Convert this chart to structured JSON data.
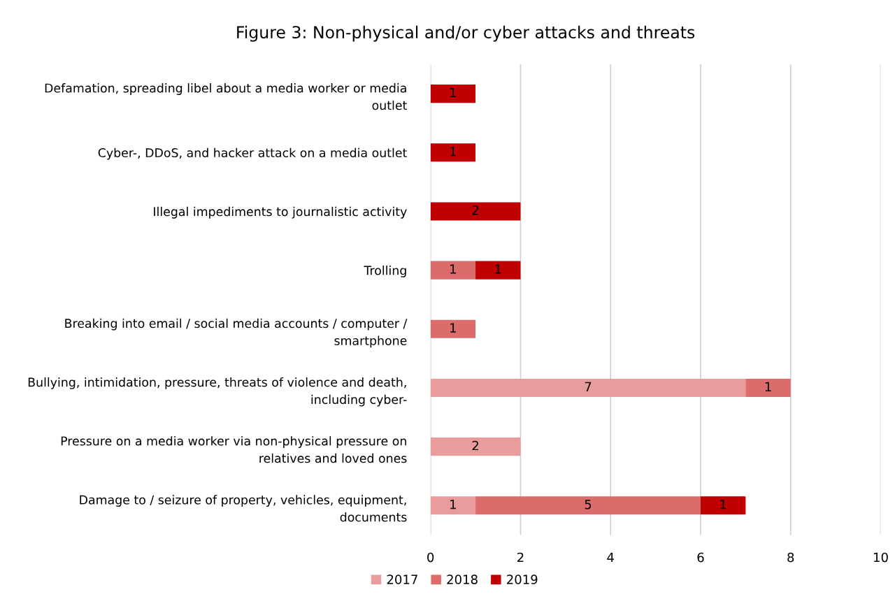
{
  "chart_data": {
    "type": "bar",
    "orientation": "horizontal",
    "stacked": true,
    "title": "Figure 3: Non-physical and/or cyber attacks and threats",
    "categories": [
      "Defamation, spreading libel about a media worker or media\noutlet",
      "Cyber-, DDoS, and hacker attack on a media outlet",
      "Illegal impediments to journalistic activity",
      "Trolling",
      "Breaking into email / social media accounts / computer /\nsmartphone",
      "Bullying, intimidation, pressure, threats of violence and death,\nincluding cyber-",
      "Pressure on a media worker via non-physical pressure on\nrelatives and loved ones",
      "Damage to / seizure of property, vehicles, equipment,\ndocuments"
    ],
    "series": [
      {
        "name": "2017",
        "color": "#e89c9c",
        "values": [
          null,
          null,
          null,
          null,
          null,
          7,
          2,
          1
        ]
      },
      {
        "name": "2018",
        "color": "#dc6b6b",
        "values": [
          null,
          null,
          null,
          1,
          1,
          1,
          null,
          5
        ]
      },
      {
        "name": "2019",
        "color": "#c00000",
        "values": [
          1,
          1,
          2,
          1,
          null,
          null,
          null,
          1
        ]
      }
    ],
    "xlim": [
      0,
      10
    ],
    "xticks": [
      0,
      2,
      4,
      6,
      8,
      10
    ],
    "grid": "x",
    "legend": "bottom",
    "data_labels": true
  }
}
